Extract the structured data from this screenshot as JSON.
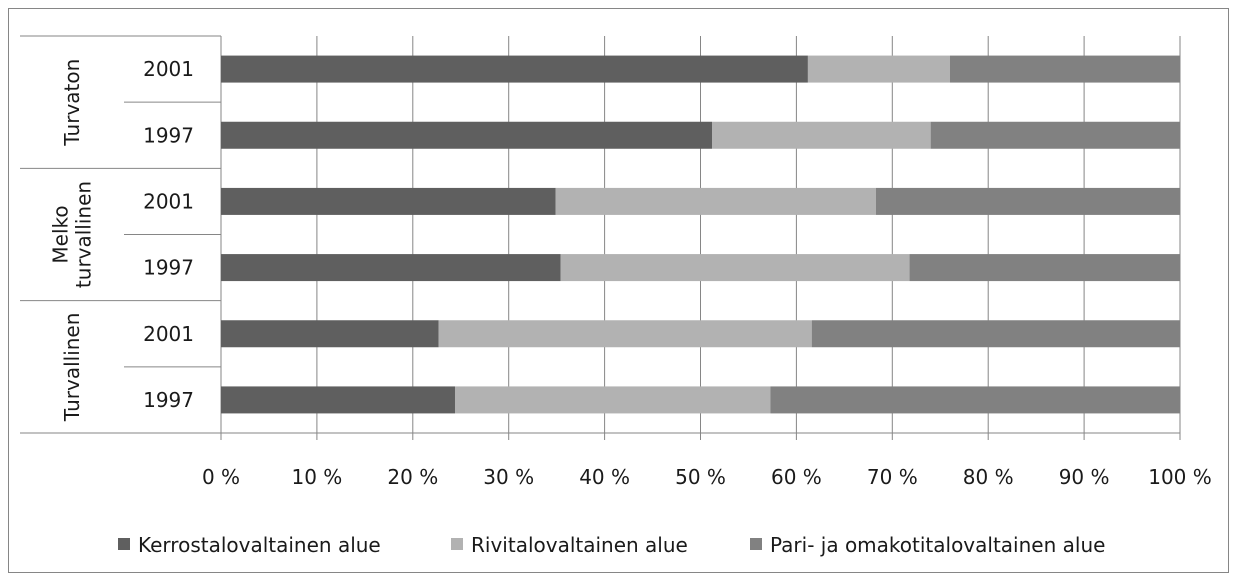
{
  "chart_data": {
    "type": "bar",
    "orientation": "horizontal",
    "stacked": "percent",
    "groups": [
      {
        "label_lines": [
          "Turvaton"
        ],
        "categories": [
          "2001",
          "1997"
        ]
      },
      {
        "label_lines": [
          "Melko",
          "turvallinen"
        ],
        "categories": [
          "2001",
          "1997"
        ]
      },
      {
        "label_lines": [
          "Turvallinen"
        ],
        "categories": [
          "2001",
          "1997"
        ]
      }
    ],
    "series": [
      {
        "name": "Kerrostalovaltainen alue",
        "color": "#5f5f5f",
        "values": [
          61.2,
          51.2,
          34.9,
          35.4,
          22.7,
          24.4
        ]
      },
      {
        "name": "Rivitalovaltainen alue",
        "color": "#b2b2b2",
        "values": [
          14.8,
          22.8,
          33.4,
          36.4,
          38.9,
          32.9
        ]
      },
      {
        "name": "Pari- ja omakotitalovaltainen alue",
        "color": "#818181",
        "values": [
          24.0,
          26.0,
          31.7,
          28.2,
          38.4,
          42.7
        ]
      }
    ],
    "xticks": [
      "0 %",
      "10 %",
      "20 %",
      "30 %",
      "40 %",
      "50 %",
      "60 %",
      "70 %",
      "80 %",
      "90 %",
      "100 %"
    ],
    "xlim": [
      0,
      100
    ],
    "grid": true,
    "legend_position": "bottom"
  }
}
